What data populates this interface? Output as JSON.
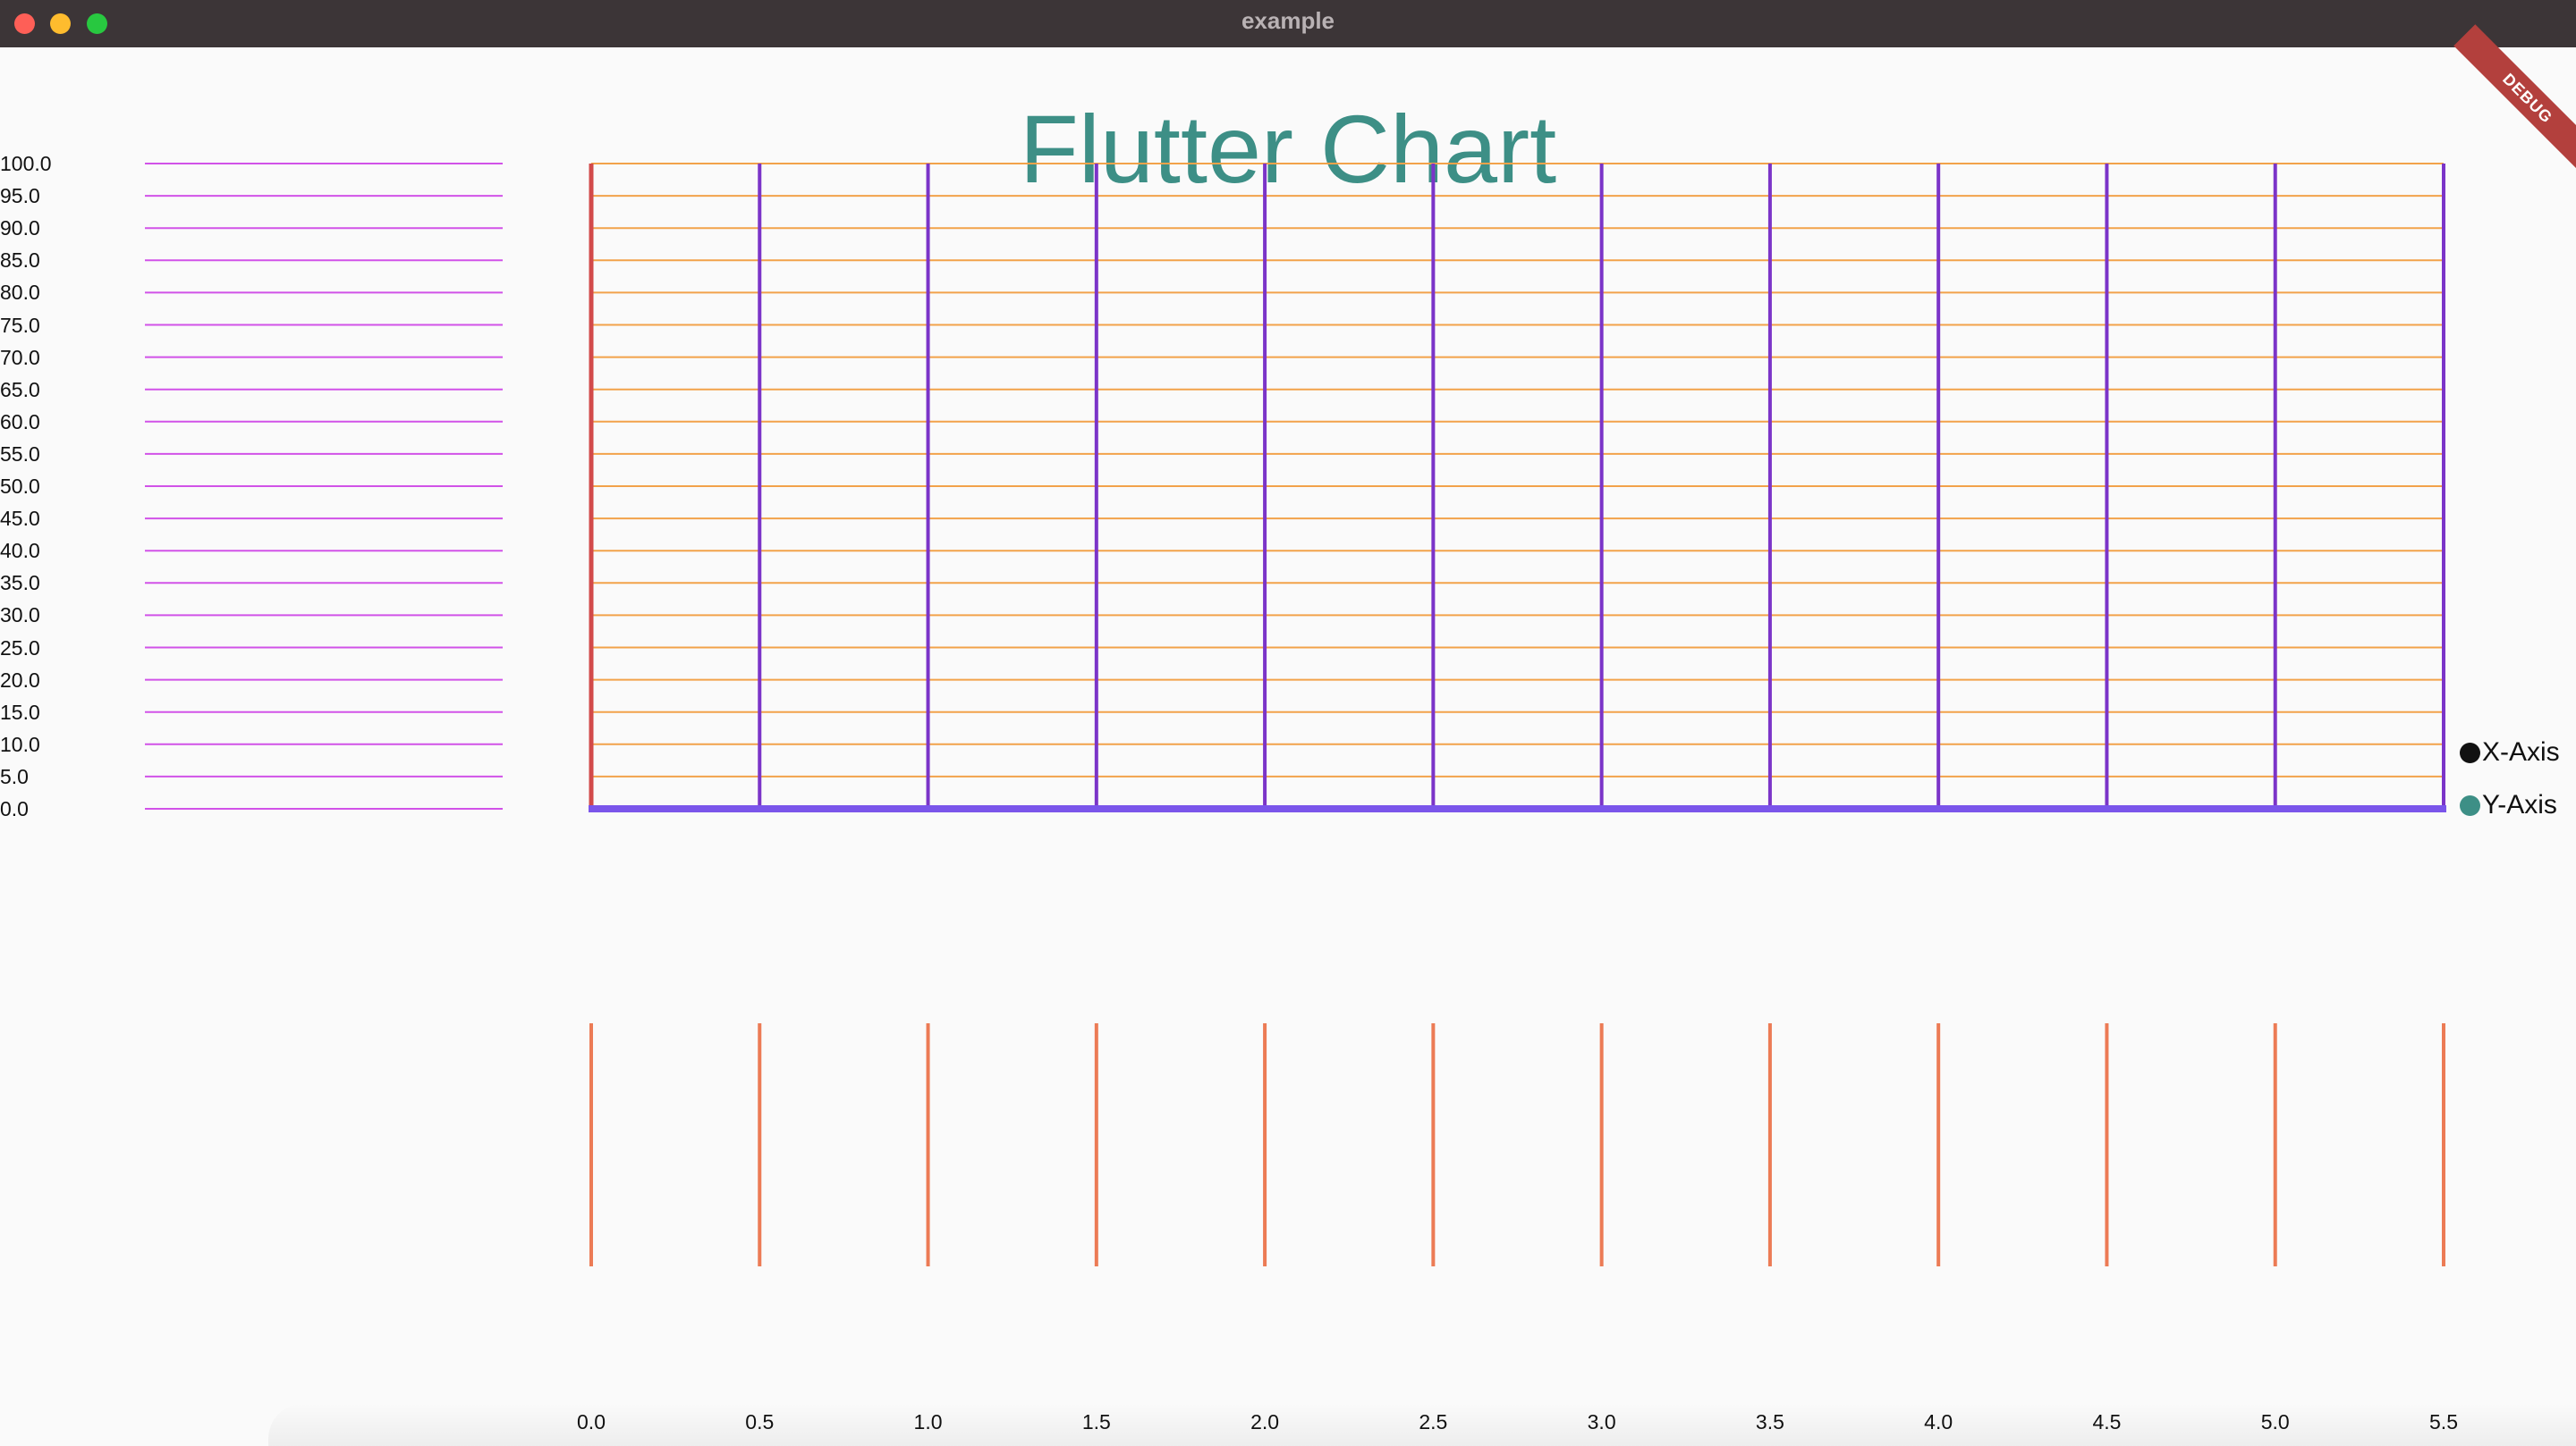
{
  "window": {
    "title": "example",
    "traffic_lights": [
      {
        "name": "close-button",
        "color": "#fe5f57"
      },
      {
        "name": "minimize-button",
        "color": "#febc2e"
      },
      {
        "name": "zoom-button",
        "color": "#28c840"
      }
    ]
  },
  "banner": {
    "label": "DEBUG"
  },
  "colors": {
    "title": "#3d8f86",
    "y_grid": "#f2a24a",
    "x_grid": "#7b34c8",
    "y_axis": "#d24a4a",
    "x_axis": "#7a55ea",
    "left_ticks": "#d152e8",
    "bottom_ticks": "#ec7b55"
  },
  "chart_data": {
    "type": "line",
    "title": "Flutter Chart",
    "xlabel": "",
    "ylabel": "",
    "x_ticks": [
      "0.0",
      "0.5",
      "1.0",
      "1.5",
      "2.0",
      "2.5",
      "3.0",
      "3.5",
      "4.0",
      "4.5",
      "5.0",
      "5.5"
    ],
    "y_ticks": [
      "100.0",
      "95.0",
      "90.0",
      "85.0",
      "80.0",
      "75.0",
      "70.0",
      "65.0",
      "60.0",
      "55.0",
      "50.0",
      "45.0",
      "40.0",
      "35.0",
      "30.0",
      "25.0",
      "20.0",
      "15.0",
      "10.0",
      "5.0",
      "0.0"
    ],
    "xlim": [
      0,
      5.5
    ],
    "ylim": [
      0,
      100
    ],
    "grid": true,
    "legend_position": "right",
    "series": [
      {
        "name": "X-Axis",
        "color": "#111111",
        "values": []
      },
      {
        "name": "Y-Axis",
        "color": "#3d8f86",
        "values": []
      }
    ]
  }
}
